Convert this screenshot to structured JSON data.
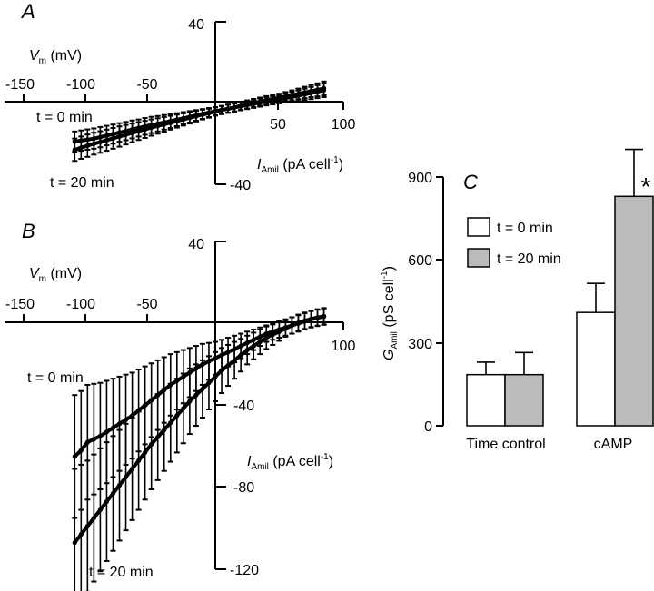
{
  "chart_data": [
    {
      "panel": "A",
      "type": "line",
      "x_label_prefix": "V",
      "x_label_subscript": "m",
      "x_label_suffix": " (mV)",
      "y_label_prefix": "I",
      "y_label_subscript": "Amil",
      "y_label_suffix": " (pA cell",
      "y_label_sup": "-1",
      "y_label_close": ")",
      "x_ticks": [
        "-150",
        "-100",
        "-50",
        "50",
        "100"
      ],
      "y_ticks": [
        "40",
        "-40"
      ],
      "xlim": [
        -150,
        100
      ],
      "ylim": [
        -40,
        40
      ],
      "annotations": [
        "t = 0 min",
        "t = 20 min"
      ],
      "series": [
        {
          "label": "t = 0 min",
          "x": [
            -110,
            -105,
            -100,
            -95,
            -90,
            -85,
            -80,
            -75,
            -70,
            -65,
            -60,
            -55,
            -50,
            -45,
            -40,
            -35,
            -30,
            -25,
            -20,
            -15,
            -10,
            -5,
            0,
            5,
            10,
            15,
            20,
            25,
            30,
            35,
            40,
            45,
            50,
            55,
            60,
            65,
            70,
            75,
            80,
            85
          ],
          "y": [
            -19,
            -18.5,
            -18,
            -17.5,
            -16.8,
            -16,
            -15.3,
            -14.5,
            -13.8,
            -13,
            -12.3,
            -11.5,
            -10.8,
            -10.2,
            -9.5,
            -8.9,
            -8.2,
            -7.5,
            -6.8,
            -6.1,
            -5.4,
            -4.7,
            -4,
            -3.4,
            -2.8,
            -2.2,
            -1.6,
            -1,
            -0.4,
            0.2,
            0.8,
            1.3,
            1.8,
            2.4,
            3,
            3.6,
            4.3,
            4.9,
            5.6,
            6.3
          ],
          "err": [
            5,
            5,
            5,
            5,
            5,
            4.8,
            4.7,
            4.6,
            4.5,
            4.4,
            4.2,
            4.1,
            4,
            3.8,
            3.6,
            3.4,
            3.2,
            3,
            2.8,
            2.6,
            2.4,
            2.2,
            2,
            2,
            2,
            2,
            2,
            2,
            2,
            2,
            2,
            2,
            2,
            2.2,
            2.4,
            2.6,
            2.8,
            3,
            3.2,
            3.4
          ]
        },
        {
          "label": "t = 20 min",
          "x": [
            -110,
            -105,
            -100,
            -95,
            -90,
            -85,
            -80,
            -75,
            -70,
            -65,
            -60,
            -55,
            -50,
            -45,
            -40,
            -35,
            -30,
            -25,
            -20,
            -15,
            -10,
            -5,
            0,
            5,
            10,
            15,
            20,
            25,
            30,
            35,
            40,
            45,
            50,
            55,
            60,
            65,
            70,
            75,
            80,
            85
          ],
          "y": [
            -23,
            -22,
            -21,
            -20,
            -19.2,
            -18.3,
            -17.4,
            -16.5,
            -15.6,
            -14.7,
            -13.8,
            -13,
            -12.1,
            -11.3,
            -10.5,
            -9.7,
            -8.9,
            -8.1,
            -7.3,
            -6.5,
            -5.7,
            -5,
            -4.2,
            -3.5,
            -2.8,
            -2.1,
            -1.4,
            -0.7,
            0,
            0.7,
            1.4,
            2,
            2.6,
            3.2,
            3.8,
            4.5,
            5.2,
            5.9,
            6.5,
            7.2
          ],
          "err": [
            5.5,
            5.5,
            5.5,
            5.4,
            5.3,
            5.2,
            5.1,
            5,
            4.8,
            4.6,
            4.4,
            4.2,
            4,
            3.8,
            3.6,
            3.4,
            3.2,
            3,
            2.8,
            2.6,
            2.4,
            2.2,
            2,
            2,
            2,
            2,
            2,
            2,
            2,
            2,
            2,
            2,
            2,
            2.2,
            2.4,
            2.6,
            2.8,
            3,
            3.2,
            3.4
          ]
        }
      ]
    },
    {
      "panel": "B",
      "type": "line",
      "x_label_prefix": "V",
      "x_label_subscript": "m",
      "x_label_suffix": " (mV)",
      "y_label_prefix": "I",
      "y_label_subscript": "Amil",
      "y_label_suffix": " (pA cell",
      "y_label_sup": "-1",
      "y_label_close": ")",
      "x_ticks": [
        "-150",
        "-100",
        "-50",
        "100"
      ],
      "y_ticks": [
        "40",
        "-40",
        "-80",
        "-120"
      ],
      "xlim": [
        -150,
        100
      ],
      "ylim": [
        -120,
        40
      ],
      "annotations": [
        "t = 0 min",
        "t = 20 min"
      ],
      "series": [
        {
          "label": "t = 0 min",
          "x": [
            -110,
            -105,
            -100,
            -95,
            -90,
            -85,
            -80,
            -75,
            -70,
            -65,
            -60,
            -55,
            -50,
            -45,
            -40,
            -35,
            -30,
            -25,
            -20,
            -15,
            -10,
            -5,
            0,
            5,
            10,
            15,
            20,
            25,
            30,
            35,
            40,
            45,
            50,
            55,
            60,
            65,
            70,
            75,
            80,
            85
          ],
          "y": [
            -65,
            -62,
            -58,
            -56.5,
            -55,
            -53,
            -51,
            -49,
            -47,
            -45,
            -42.5,
            -40,
            -37.5,
            -35,
            -32.5,
            -30,
            -28,
            -26,
            -24,
            -22,
            -20,
            -18.5,
            -17,
            -15.5,
            -14,
            -12.5,
            -11,
            -9.5,
            -8,
            -6.5,
            -5,
            -4,
            -3,
            -2,
            -1,
            0,
            1,
            2,
            2.7,
            3.3
          ],
          "err": [
            30,
            29,
            28,
            27,
            26,
            25,
            24,
            23,
            22,
            21,
            20,
            19,
            18,
            17,
            16,
            15,
            14,
            13,
            12,
            11,
            10,
            9,
            8,
            7.5,
            7,
            6.5,
            6,
            5.5,
            5,
            4.5,
            4,
            4,
            4,
            4,
            4,
            4,
            4,
            4,
            4,
            4
          ]
        },
        {
          "label": "t = 20 min",
          "x": [
            -110,
            -105,
            -100,
            -95,
            -90,
            -85,
            -80,
            -75,
            -70,
            -65,
            -60,
            -55,
            -50,
            -45,
            -40,
            -35,
            -30,
            -25,
            -20,
            -15,
            -10,
            -5,
            0,
            5,
            10,
            15,
            20,
            25,
            30,
            35,
            40,
            45,
            50,
            55,
            60,
            65,
            70,
            75,
            80,
            85
          ],
          "y": [
            -107,
            -103,
            -99,
            -95,
            -91,
            -87,
            -83,
            -79,
            -75,
            -71,
            -67,
            -63,
            -59,
            -55.5,
            -52,
            -48.5,
            -45,
            -41.5,
            -38,
            -35,
            -32,
            -29,
            -26,
            -23,
            -20.5,
            -18,
            -15.5,
            -13,
            -11,
            -9,
            -7,
            -5.5,
            -4,
            -2.5,
            -1,
            0.3,
            1.3,
            2.2,
            2.9,
            3.5
          ],
          "err": [
            36,
            34,
            32,
            31,
            30,
            29,
            28,
            27,
            26,
            25,
            24,
            23,
            22,
            21,
            20,
            19,
            18,
            17,
            16,
            15,
            14,
            13,
            12,
            11,
            10,
            9,
            8,
            7,
            6.5,
            6,
            5.5,
            5,
            4.5,
            4,
            4,
            4,
            4,
            4,
            4,
            4
          ]
        }
      ]
    },
    {
      "panel": "C",
      "type": "bar",
      "y_label_prefix": "G",
      "y_label_subscript": "Amil",
      "y_label_suffix": " (pS cell",
      "y_label_sup": "-1",
      "y_label_close": ")",
      "y_ticks": [
        "900",
        "600",
        "300",
        "0"
      ],
      "ylim": [
        0,
        900
      ],
      "categories": [
        "Time control",
        "cAMP"
      ],
      "significance": "*",
      "legend_position": "top-left",
      "series": [
        {
          "name": "t = 0 min",
          "color": "#ffffff",
          "values": [
            185,
            410
          ],
          "err": [
            45,
            105
          ]
        },
        {
          "name": "t = 20 min",
          "color": "#bbbbbb",
          "values": [
            185,
            830
          ],
          "err": [
            80,
            170
          ]
        }
      ]
    }
  ]
}
